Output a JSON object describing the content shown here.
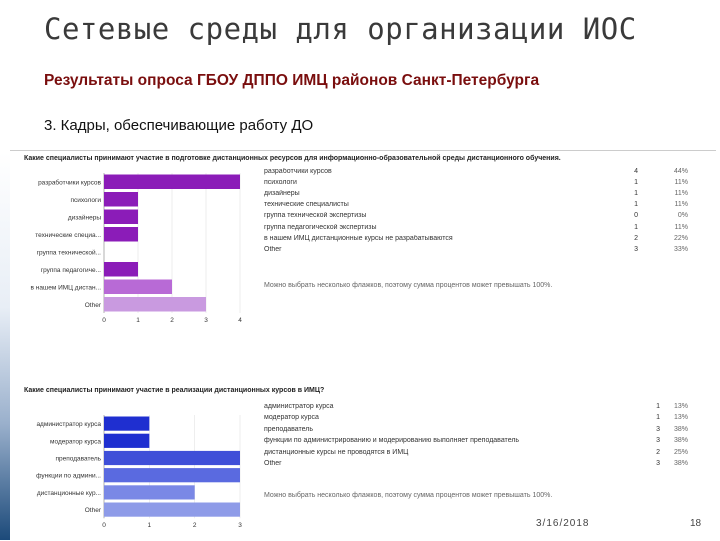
{
  "slide": {
    "title": "Сетевые среды для организации ИОС",
    "subtitle": "Результаты опроса ГБОУ ДППО ИМЦ районов Санкт-Петербурга",
    "item": "3.  Кадры, обеспечивающие работу ДО",
    "date": "3/16/2018",
    "page": "18"
  },
  "colors": {
    "chart1_bars": [
      "#8b1cb8",
      "#8b1cb8",
      "#8b1cb8",
      "#8b1cb8",
      "#8b1cb8",
      "#8b1cb8",
      "#b86ad6",
      "#c99ae0"
    ],
    "chart2_bars": [
      "#1f2fd0",
      "#1f2fd0",
      "#3f4fd8",
      "#5a6ae0",
      "#7a88e6",
      "#8e9be8"
    ]
  },
  "chart_data": [
    {
      "type": "bar",
      "orientation": "horizontal",
      "title": "Какие специалисты принимают участие в подготовке дистанционных ресурсов для информационно-образовательной среды дистанционного обучения.",
      "categories": [
        "разработчики курсов",
        "психологи",
        "дизайнеры",
        "технические специа...",
        "группа технической...",
        "группа педагогиче...",
        "в нашем ИМЦ дистан...",
        "Other"
      ],
      "values": [
        4,
        1,
        1,
        1,
        0,
        1,
        2,
        3
      ],
      "xlim": [
        0,
        4
      ],
      "xticks": [
        "0",
        "1",
        "2",
        "3",
        "4"
      ],
      "table": [
        {
          "label": "разработчики курсов",
          "count": "4",
          "pct": "44%"
        },
        {
          "label": "психологи",
          "count": "1",
          "pct": "11%"
        },
        {
          "label": "дизайнеры",
          "count": "1",
          "pct": "11%"
        },
        {
          "label": "технические специалисты",
          "count": "1",
          "pct": "11%"
        },
        {
          "label": "группа технической экспертизы",
          "count": "0",
          "pct": "0%"
        },
        {
          "label": "группа педагогической экспертизы",
          "count": "1",
          "pct": "11%"
        },
        {
          "label": "в нашем ИМЦ дистанционные курсы не разрабатываются",
          "count": "2",
          "pct": "22%"
        },
        {
          "label": "Other",
          "count": "3",
          "pct": "33%"
        }
      ],
      "note": "Можно выбрать несколько флажков, поэтому сумма процентов может превышать 100%."
    },
    {
      "type": "bar",
      "orientation": "horizontal",
      "title": "Какие специалисты принимают участие в реализации дистанционных курсов в ИМЦ?",
      "categories": [
        "администратор курса",
        "модератор курса",
        "преподаватель",
        "функции по админи...",
        "дистанционные кур...",
        "Other"
      ],
      "values": [
        1,
        1,
        3,
        3,
        2,
        3
      ],
      "xlim": [
        0,
        3
      ],
      "xticks": [
        "0",
        "1",
        "2",
        "3"
      ],
      "table": [
        {
          "label": "администратор курса",
          "count": "1",
          "pct": "13%"
        },
        {
          "label": "модератор курса",
          "count": "1",
          "pct": "13%"
        },
        {
          "label": "преподаватель",
          "count": "3",
          "pct": "38%"
        },
        {
          "label": "функции по администрированию и модерированию выполняет преподаватель",
          "count": "3",
          "pct": "38%"
        },
        {
          "label": "дистанционные курсы не проводятся в ИМЦ",
          "count": "2",
          "pct": "25%"
        },
        {
          "label": "Other",
          "count": "3",
          "pct": "38%"
        }
      ],
      "note": "Можно выбрать несколько флажков, поэтому сумма процентов может превышать 100%."
    }
  ]
}
